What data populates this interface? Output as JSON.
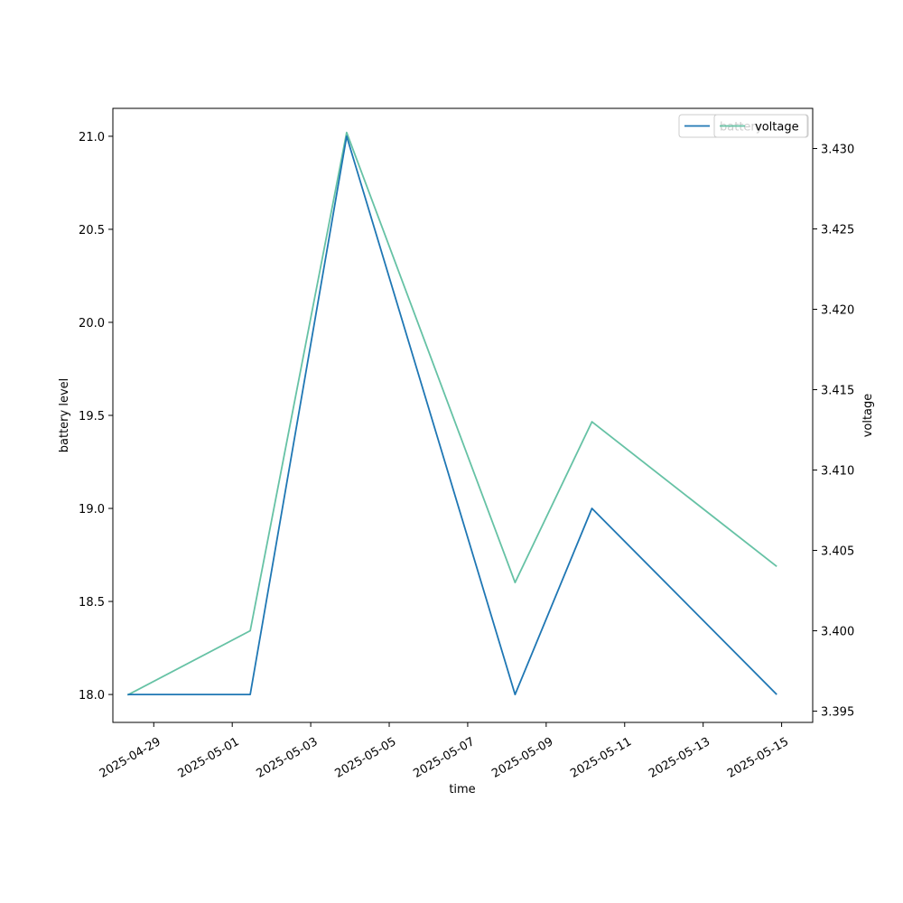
{
  "chart_data": {
    "type": "line",
    "xlabel": "time",
    "ylabel_left": "battery level",
    "ylabel_right": "voltage",
    "xlim": [
      "2025-04-27T23:00",
      "2025-05-15T19:00"
    ],
    "ylim_left": [
      17.85,
      21.15
    ],
    "ylim_right": [
      3.3943,
      3.4325
    ],
    "x_ticks": [
      "2025-04-29",
      "2025-05-01",
      "2025-05-03",
      "2025-05-05",
      "2025-05-07",
      "2025-05-09",
      "2025-05-11",
      "2025-05-13",
      "2025-05-15"
    ],
    "y_ticks_left": [
      "18.0",
      "18.5",
      "19.0",
      "19.5",
      "20.0",
      "20.5",
      "21.0"
    ],
    "y_ticks_right": [
      "3.395",
      "3.400",
      "3.405",
      "3.410",
      "3.415",
      "3.420",
      "3.425",
      "3.430"
    ],
    "grid": false,
    "series": [
      {
        "name": "battery",
        "axis": "left",
        "color": "#1f77b4",
        "points": [
          {
            "x": "2025-04-28T08:00",
            "y": 18.0
          },
          {
            "x": "2025-05-01T11:00",
            "y": 18.0
          },
          {
            "x": "2025-05-03T22:00",
            "y": 21.0
          },
          {
            "x": "2025-05-08T05:00",
            "y": 18.0
          },
          {
            "x": "2025-05-10T04:00",
            "y": 19.0
          },
          {
            "x": "2025-05-14T21:00",
            "y": 18.0
          }
        ]
      },
      {
        "name": "voltage",
        "axis": "right",
        "color": "#66c2a5",
        "points": [
          {
            "x": "2025-04-28T08:00",
            "y": 3.396
          },
          {
            "x": "2025-05-01T11:00",
            "y": 3.4
          },
          {
            "x": "2025-05-03T22:00",
            "y": 3.431
          },
          {
            "x": "2025-05-08T05:00",
            "y": 3.403
          },
          {
            "x": "2025-05-10T04:00",
            "y": 3.413
          },
          {
            "x": "2025-05-14T21:00",
            "y": 3.404
          }
        ]
      }
    ],
    "legends": [
      {
        "label": "battery",
        "color": "#1f77b4",
        "placement": "top-right"
      },
      {
        "label": "voltage",
        "color": "#66c2a5",
        "placement": "top-right"
      }
    ]
  }
}
